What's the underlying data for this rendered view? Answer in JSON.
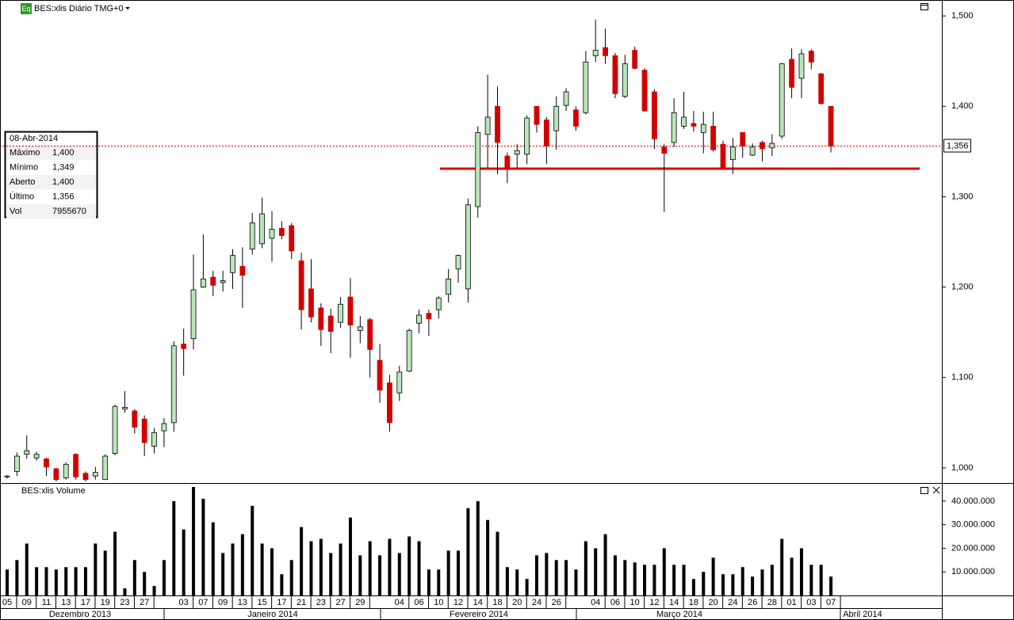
{
  "chart_data": [
    {
      "type": "candlestick",
      "title": "BES:xlis Diário TMG+0",
      "badge": "Eq",
      "categories": [
        "05",
        null,
        "09",
        null,
        "11",
        null,
        "13",
        null,
        "17",
        null,
        "19",
        null,
        "23",
        null,
        "27",
        null,
        null,
        null,
        "03",
        null,
        "07",
        null,
        "09",
        null,
        "13",
        null,
        "15",
        null,
        "17",
        null,
        "21",
        null,
        "23",
        null,
        "27",
        null,
        "29",
        null,
        null,
        null,
        "04",
        null,
        "06",
        null,
        "10",
        null,
        "12",
        null,
        "14",
        null,
        "18",
        null,
        "20",
        null,
        "24",
        null,
        "26",
        null,
        null,
        null,
        "04",
        null,
        "06",
        null,
        "10",
        null,
        "12",
        null,
        "14",
        null,
        "18",
        null,
        "20",
        null,
        "24",
        null,
        "26",
        null,
        "28",
        null,
        "01",
        null,
        "03",
        null,
        "07"
      ],
      "open": [
        0.99,
        0.996,
        1.015,
        1.011,
        1.01,
        0.999,
        0.989,
        1.015,
        0.994,
        0.991,
        0.987,
        1.016,
        1.065,
        1.063,
        1.054,
        1.024,
        1.041,
        1.05,
        1.137,
        1.143,
        1.2,
        1.211,
        1.205,
        1.216,
        1.223,
        1.242,
        1.248,
        1.254,
        1.265,
        1.268,
        1.229,
        1.198,
        1.177,
        1.168,
        1.161,
        1.189,
        1.152,
        1.164,
        1.119,
        1.094,
        1.083,
        1.107,
        1.16,
        1.171,
        1.175,
        1.192,
        1.22,
        1.198,
        1.289,
        1.369,
        1.4,
        1.345,
        1.347,
        1.347,
        1.4,
        1.385,
        1.373,
        1.401,
        1.396,
        1.393,
        1.456,
        1.465,
        1.456,
        1.411,
        1.462,
        1.44,
        1.416,
        1.355,
        1.36,
        1.378,
        1.381,
        1.371,
        1.378,
        1.358,
        1.341,
        1.371,
        1.346,
        1.36,
        1.354,
        1.367,
        1.452,
        1.431,
        1.461,
        1.436,
        1.4
      ],
      "high": [
        0.992,
        1.017,
        1.036,
        1.018,
        1.011,
        1.0,
        1.006,
        1.016,
        0.996,
        1.001,
        1.015,
        1.07,
        1.085,
        1.065,
        1.058,
        1.044,
        1.055,
        1.14,
        1.154,
        1.236,
        1.258,
        1.218,
        1.218,
        1.242,
        1.244,
        1.282,
        1.299,
        1.284,
        1.273,
        1.271,
        1.238,
        1.231,
        1.182,
        1.176,
        1.189,
        1.21,
        1.168,
        1.166,
        1.137,
        1.103,
        1.113,
        1.154,
        1.175,
        1.175,
        1.19,
        1.22,
        1.236,
        1.298,
        1.378,
        1.435,
        1.422,
        1.349,
        1.358,
        1.39,
        1.4,
        1.388,
        1.411,
        1.42,
        1.4,
        1.461,
        1.496,
        1.486,
        1.459,
        1.457,
        1.466,
        1.442,
        1.419,
        1.358,
        1.409,
        1.416,
        1.395,
        1.394,
        1.394,
        1.362,
        1.365,
        1.371,
        1.359,
        1.362,
        1.369,
        1.448,
        1.464,
        1.463,
        1.463,
        1.437,
        1.4
      ],
      "low": [
        0.988,
        0.991,
        1.01,
        1.008,
        0.991,
        0.985,
        0.987,
        0.987,
        0.985,
        0.987,
        0.987,
        1.014,
        1.061,
        1.038,
        1.013,
        1.016,
        1.023,
        1.04,
        1.102,
        1.131,
        1.199,
        1.19,
        1.195,
        1.198,
        1.177,
        1.236,
        1.243,
        1.228,
        1.253,
        1.231,
        1.153,
        1.161,
        1.135,
        1.127,
        1.155,
        1.122,
        1.138,
        1.1,
        1.072,
        1.04,
        1.074,
        1.106,
        1.149,
        1.146,
        1.165,
        1.183,
        1.205,
        1.183,
        1.277,
        1.332,
        1.325,
        1.315,
        1.332,
        1.336,
        1.371,
        1.336,
        1.352,
        1.395,
        1.373,
        1.391,
        1.449,
        1.447,
        1.409,
        1.409,
        1.441,
        1.394,
        1.353,
        1.283,
        1.355,
        1.375,
        1.372,
        1.348,
        1.35,
        1.332,
        1.325,
        1.343,
        1.345,
        1.339,
        1.345,
        1.364,
        1.409,
        1.409,
        1.441,
        1.402,
        1.349
      ],
      "close": [
        0.991,
        1.013,
        1.019,
        1.015,
        1.001,
        0.987,
        1.004,
        0.99,
        0.987,
        0.995,
        1.013,
        1.068,
        1.067,
        1.045,
        1.028,
        1.039,
        1.049,
        1.135,
        1.132,
        1.197,
        1.209,
        1.202,
        1.207,
        1.235,
        1.213,
        1.271,
        1.281,
        1.264,
        1.257,
        1.24,
        1.175,
        1.167,
        1.153,
        1.151,
        1.181,
        1.158,
        1.156,
        1.131,
        1.086,
        1.05,
        1.106,
        1.152,
        1.169,
        1.165,
        1.188,
        1.209,
        1.235,
        1.291,
        1.371,
        1.388,
        1.36,
        1.331,
        1.351,
        1.387,
        1.38,
        1.356,
        1.4,
        1.416,
        1.378,
        1.449,
        1.462,
        1.456,
        1.414,
        1.447,
        1.442,
        1.395,
        1.364,
        1.348,
        1.393,
        1.388,
        1.378,
        1.38,
        1.352,
        1.332,
        1.355,
        1.356,
        1.355,
        1.353,
        1.359,
        1.447,
        1.421,
        1.458,
        1.449,
        1.403,
        1.356
      ],
      "up_color": "#b9e6b9",
      "down_color": "#d40000",
      "ylim": [
        0.985,
        1.515
      ],
      "yticks": [
        {
          "value": 1.0,
          "label": "1,000"
        },
        {
          "value": 1.1,
          "label": "1,100"
        },
        {
          "value": 1.2,
          "label": "1,200"
        },
        {
          "value": 1.3,
          "label": "1,300"
        },
        {
          "value": 1.4,
          "label": "1,400"
        },
        {
          "value": 1.5,
          "label": "1,500"
        }
      ],
      "last_price": {
        "value": 1.356,
        "label": "1,356"
      },
      "support_level": 1.331,
      "info_box": {
        "date": "08-Abr-2014",
        "rows": [
          [
            "Máximo",
            "1,400"
          ],
          [
            "Mínimo",
            "1,349"
          ],
          [
            "Aberto",
            "1,400"
          ],
          [
            "Último",
            "1,356"
          ],
          [
            "Vol",
            "7955670"
          ]
        ]
      },
      "months": [
        "Dezembro 2013",
        "Janeiro 2014",
        "Fevereiro 2014",
        "Março 2014",
        "Abril 2014"
      ]
    },
    {
      "type": "bar",
      "title": "BES:xlis Volume",
      "color": "#000000",
      "values": [
        11000000,
        15000000,
        22000000,
        12000000,
        12000000,
        11000000,
        12000000,
        12000000,
        12000000,
        22000000,
        19000000,
        27000000,
        3000000,
        15000000,
        10000000,
        4000000,
        15000000,
        40000000,
        28000000,
        46000000,
        41000000,
        31000000,
        18000000,
        22000000,
        26000000,
        38000000,
        22000000,
        20000000,
        9000000,
        15000000,
        29000000,
        23000000,
        24000000,
        18000000,
        22000000,
        33000000,
        17000000,
        23000000,
        17000000,
        24000000,
        18000000,
        25000000,
        23000000,
        11000000,
        11000000,
        19000000,
        19000000,
        37000000,
        40000000,
        32000000,
        27000000,
        12000000,
        11000000,
        7000000,
        17000000,
        18000000,
        15000000,
        15000000,
        11000000,
        23000000,
        20000000,
        26000000,
        17000000,
        15000000,
        14000000,
        13000000,
        13000000,
        20000000,
        13000000,
        13000000,
        7000000,
        10000000,
        16000000,
        9000000,
        9000000,
        12000000,
        8000000,
        11000000,
        13000000,
        24000000,
        16000000,
        20000000,
        13000000,
        13000000,
        8000000
      ],
      "ylim": [
        0,
        47000000
      ],
      "yticks": [
        {
          "value": 10000000,
          "label": "10.000.000"
        },
        {
          "value": 20000000,
          "label": "20.000.000"
        },
        {
          "value": 30000000,
          "label": "30.000.000"
        },
        {
          "value": 40000000,
          "label": "40.000.000"
        }
      ]
    }
  ]
}
